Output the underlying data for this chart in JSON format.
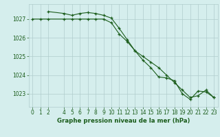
{
  "title": "Graphe pression niveau de la mer (hPa)",
  "background_color": "#d5eeed",
  "grid_color": "#b0cccc",
  "line_color": "#1a5c1a",
  "xlim": [
    -0.5,
    23.5
  ],
  "ylim": [
    1022.3,
    1027.8
  ],
  "yticks": [
    1023,
    1024,
    1025,
    1026,
    1027
  ],
  "xticks": [
    0,
    1,
    2,
    4,
    5,
    6,
    7,
    8,
    9,
    10,
    11,
    12,
    13,
    14,
    15,
    16,
    17,
    18,
    19,
    20,
    21,
    22,
    23
  ],
  "line1_x": [
    0,
    1,
    2,
    4,
    5,
    6,
    7,
    8,
    9,
    10,
    11,
    12,
    13,
    14,
    15,
    16,
    17,
    18,
    19,
    20,
    21,
    22,
    23
  ],
  "line1_y": [
    1027.0,
    1027.0,
    1027.0,
    1027.0,
    1027.0,
    1027.0,
    1027.0,
    1027.0,
    1027.0,
    1026.8,
    1026.2,
    1025.8,
    1025.3,
    1025.0,
    1024.7,
    1024.4,
    1024.0,
    1023.6,
    1023.2,
    1022.8,
    1022.9,
    1023.2,
    1022.8
  ],
  "line2_x": [
    2,
    4,
    5,
    6,
    7,
    8,
    9,
    10,
    11,
    12,
    13,
    14,
    15,
    16,
    17,
    18,
    19,
    20,
    21,
    22,
    23
  ],
  "line2_y": [
    1027.4,
    1027.3,
    1027.2,
    1027.3,
    1027.35,
    1027.3,
    1027.2,
    1027.05,
    1026.5,
    1025.9,
    1025.3,
    1024.8,
    1024.4,
    1023.9,
    1023.85,
    1023.7,
    1023.0,
    1022.7,
    1023.15,
    1023.1,
    1022.8
  ]
}
